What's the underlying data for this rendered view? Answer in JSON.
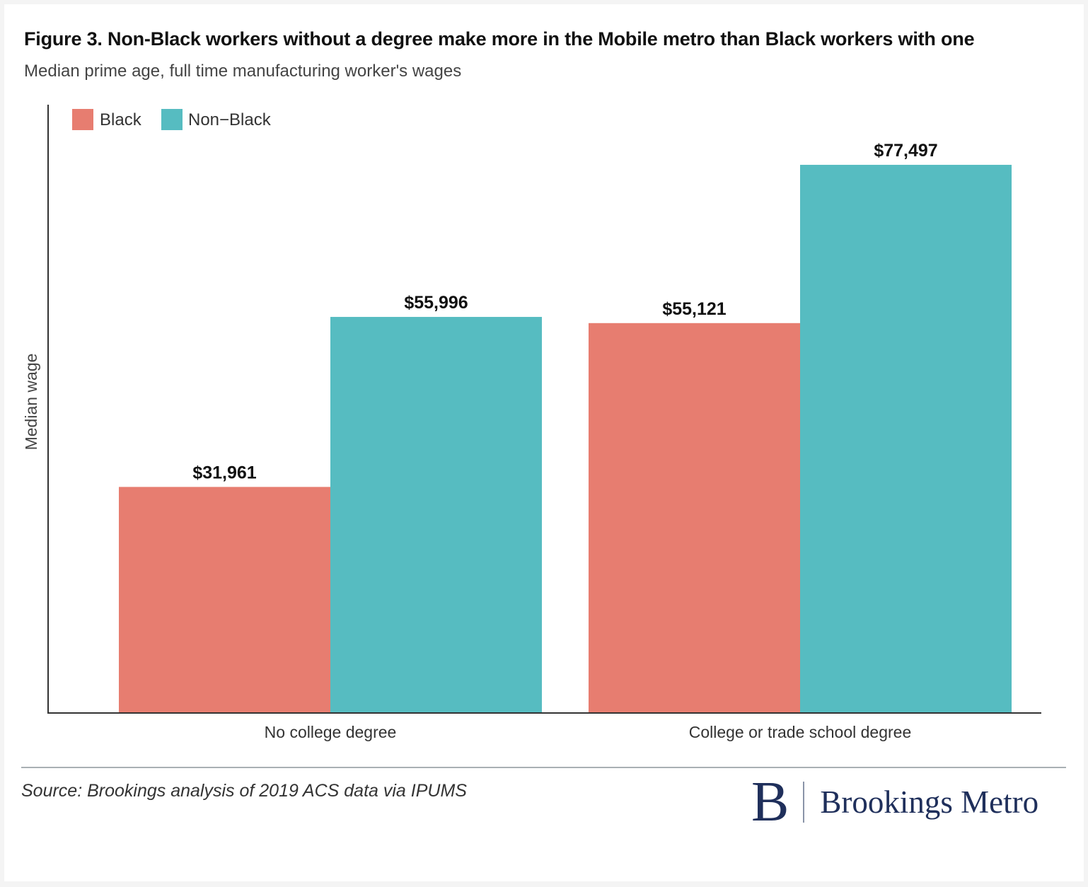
{
  "header": {
    "title": "Figure 3. Non-Black workers without a degree make more in the Mobile metro than Black workers with one",
    "subtitle": "Median prime age, full time manufacturing worker's wages"
  },
  "footer": {
    "source": "Source: Brookings analysis of 2019 ACS data via IPUMS",
    "logo_mark": "B",
    "logo_text": "Brookings Metro"
  },
  "colors": {
    "black_series": "#e77d70",
    "nonblack_series": "#56bcc1",
    "axis": "#333333"
  },
  "chart_data": {
    "type": "bar",
    "categories": [
      "No college degree",
      "College or trade school degree"
    ],
    "series": [
      {
        "name": "Black",
        "values": [
          31961,
          55121
        ],
        "labels": [
          "$31,961",
          "$55,121"
        ],
        "color": "#e77d70"
      },
      {
        "name": "Non−Black",
        "values": [
          55996,
          77497
        ],
        "labels": [
          "$55,996",
          "$77,497"
        ],
        "color": "#56bcc1"
      }
    ],
    "xlabel": "",
    "ylabel": "Median wage",
    "ylim": [
      0,
      86000
    ],
    "grid": false,
    "y_ticks_shown": false,
    "legend": "top-left"
  }
}
